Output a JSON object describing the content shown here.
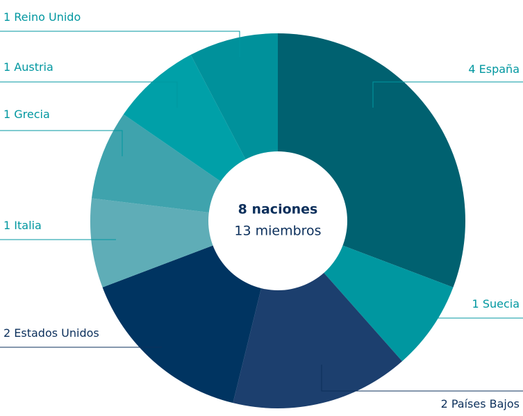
{
  "chart_data": {
    "type": "donut",
    "center_title": "8 naciones",
    "center_subtitle": "13 miembros",
    "categories": [
      "España",
      "Suecia",
      "Países Bajos",
      "Estados Unidos",
      "Italia",
      "Grecia",
      "Austria",
      "Reino Unido"
    ],
    "values": [
      4,
      1,
      2,
      2,
      1,
      1,
      1,
      1
    ],
    "colors": [
      "#006170",
      "#0097a0",
      "#1c3f6e",
      "#003461",
      "#5fadb7",
      "#3fa3ad",
      "#00a0a8",
      "#00919b"
    ],
    "label_colors": [
      "#0097a0",
      "#0097a0",
      "#0b2f5b",
      "#0b2f5b",
      "#0097a0",
      "#0097a0",
      "#0097a0",
      "#0097a0"
    ]
  }
}
